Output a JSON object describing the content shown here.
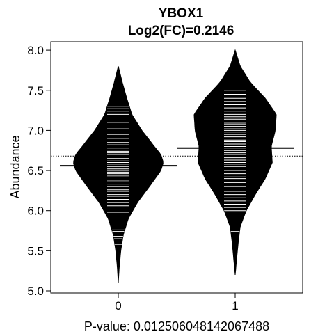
{
  "chart_data": {
    "type": "beanplot",
    "title": "YBOX1",
    "subtitle": "Log2(FC)=0.2146",
    "ylabel": "Abundance",
    "xlabel": "P-value: 0.012506048142067488",
    "categories": [
      "0",
      "1"
    ],
    "ylim": [
      5.0,
      8.0
    ],
    "yticks": [
      "5.0",
      "5.5",
      "6.0",
      "6.5",
      "7.0",
      "7.5",
      "8.0"
    ],
    "overall_mean": 6.68,
    "grid": false,
    "groups": [
      {
        "label": "0",
        "mean": 6.56,
        "range": [
          5.1,
          7.8
        ],
        "density": [
          [
            5.1,
            0.0
          ],
          [
            5.3,
            0.02
          ],
          [
            5.5,
            0.05
          ],
          [
            5.7,
            0.1
          ],
          [
            5.9,
            0.2
          ],
          [
            6.1,
            0.38
          ],
          [
            6.3,
            0.62
          ],
          [
            6.5,
            0.85
          ],
          [
            6.6,
            0.9
          ],
          [
            6.7,
            0.85
          ],
          [
            6.8,
            0.72
          ],
          [
            7.0,
            0.47
          ],
          [
            7.2,
            0.27
          ],
          [
            7.4,
            0.17
          ],
          [
            7.6,
            0.08
          ],
          [
            7.8,
            0.0
          ]
        ],
        "values": [
          5.58,
          5.62,
          5.65,
          5.68,
          5.74,
          5.76,
          5.98,
          6.06,
          6.1,
          6.14,
          6.18,
          6.2,
          6.24,
          6.26,
          6.3,
          6.33,
          6.36,
          6.38,
          6.42,
          6.44,
          6.46,
          6.48,
          6.5,
          6.52,
          6.55,
          6.58,
          6.6,
          6.62,
          6.65,
          6.67,
          6.7,
          6.72,
          6.74,
          6.78,
          6.82,
          6.85,
          6.9,
          6.95,
          7.02,
          7.1,
          7.2,
          7.24,
          7.27,
          7.3
        ]
      },
      {
        "label": "1",
        "mean": 6.78,
        "range": [
          5.2,
          8.0
        ],
        "density": [
          [
            5.2,
            0.0
          ],
          [
            5.4,
            0.03
          ],
          [
            5.6,
            0.06
          ],
          [
            5.8,
            0.1
          ],
          [
            6.0,
            0.22
          ],
          [
            6.2,
            0.4
          ],
          [
            6.4,
            0.6
          ],
          [
            6.6,
            0.74
          ],
          [
            6.8,
            0.72
          ],
          [
            7.0,
            0.8
          ],
          [
            7.2,
            0.82
          ],
          [
            7.4,
            0.6
          ],
          [
            7.6,
            0.3
          ],
          [
            7.8,
            0.1
          ],
          [
            8.0,
            0.0
          ]
        ],
        "values": [
          5.74,
          6.0,
          6.04,
          6.08,
          6.12,
          6.16,
          6.2,
          6.24,
          6.3,
          6.35,
          6.4,
          6.42,
          6.46,
          6.5,
          6.55,
          6.58,
          6.6,
          6.63,
          6.66,
          6.7,
          6.72,
          6.75,
          6.78,
          6.8,
          6.83,
          6.86,
          6.88,
          6.92,
          6.95,
          6.98,
          7.0,
          7.02,
          7.05,
          7.08,
          7.1,
          7.14,
          7.17,
          7.2,
          7.24,
          7.28,
          7.32,
          7.36,
          7.4,
          7.45,
          7.5
        ]
      }
    ]
  }
}
